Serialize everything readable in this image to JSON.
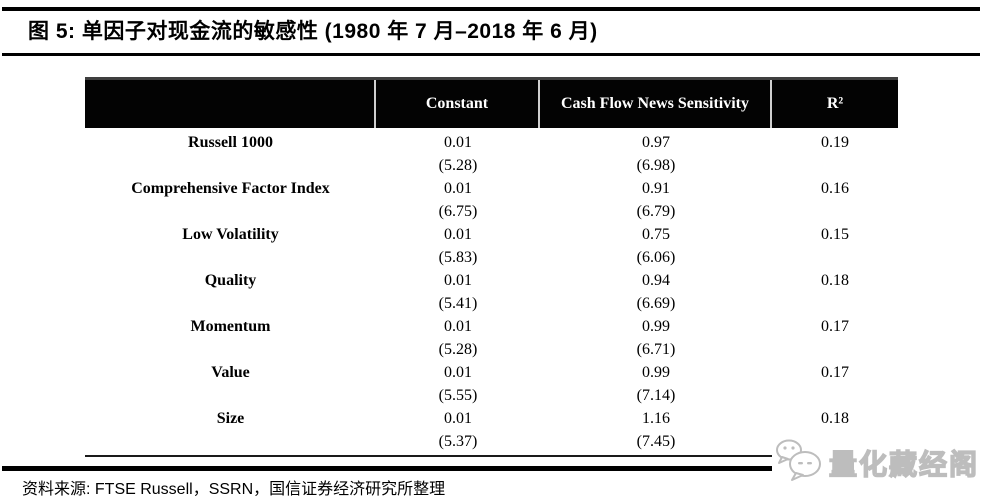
{
  "title": "图 5: 单因子对现金流的敏感性 (1980 年 7 月–2018 年 6 月)",
  "table": {
    "header": {
      "row_label": "",
      "constant": "Constant",
      "sensitivity": "Cash Flow News Sensitivity",
      "r2": "R²"
    },
    "rows": [
      {
        "label": "Russell 1000",
        "constant": "0.01",
        "constant_t": "(5.28)",
        "sensitivity": "0.97",
        "sensitivity_t": "(6.98)",
        "r2": "0.19"
      },
      {
        "label": "Comprehensive Factor Index",
        "constant": "0.01",
        "constant_t": "(6.75)",
        "sensitivity": "0.91",
        "sensitivity_t": "(6.79)",
        "r2": "0.16"
      },
      {
        "label": "Low Volatility",
        "constant": "0.01",
        "constant_t": "(5.83)",
        "sensitivity": "0.75",
        "sensitivity_t": "(6.06)",
        "r2": "0.15"
      },
      {
        "label": "Quality",
        "constant": "0.01",
        "constant_t": "(5.41)",
        "sensitivity": "0.94",
        "sensitivity_t": "(6.69)",
        "r2": "0.18"
      },
      {
        "label": "Momentum",
        "constant": "0.01",
        "constant_t": "(5.28)",
        "sensitivity": "0.99",
        "sensitivity_t": "(6.71)",
        "r2": "0.17"
      },
      {
        "label": "Value",
        "constant": "0.01",
        "constant_t": "(5.55)",
        "sensitivity": "0.99",
        "sensitivity_t": "(7.14)",
        "r2": "0.17"
      },
      {
        "label": "Size",
        "constant": "0.01",
        "constant_t": "(5.37)",
        "sensitivity": "1.16",
        "sensitivity_t": "(7.45)",
        "r2": "0.18"
      }
    ]
  },
  "source": "资料来源: FTSE Russell，SSRN，国信证券经济研究所整理",
  "watermark": {
    "text": "量化藏经阁",
    "icon": "wechat-chat-bubbles-icon"
  },
  "colors": {
    "header_bg": "#030303",
    "header_text": "#ffffff",
    "rule": "#000000",
    "watermark_gray": "#bdbdbd"
  }
}
